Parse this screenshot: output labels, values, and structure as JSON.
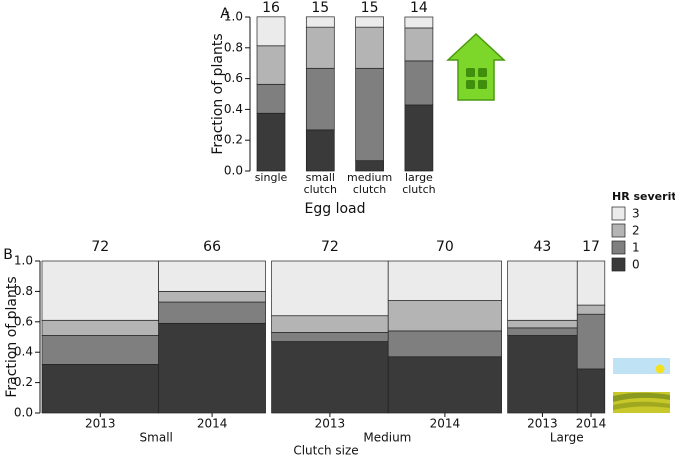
{
  "chart_data": [
    {
      "type": "stacked_bar",
      "panel_label": "A",
      "xlabel": "Egg load",
      "ylabel": "Fraction of plants",
      "categories": [
        "single",
        "small clutch",
        "medium clutch",
        "large clutch"
      ],
      "counts": [
        16,
        15,
        15,
        14
      ],
      "series": [
        {
          "color": "#3a3a3a",
          "values": [
            0.375,
            0.267,
            0.067,
            0.429
          ]
        },
        {
          "color": "#7f7f7f",
          "values": [
            0.188,
            0.4,
            0.6,
            0.286
          ]
        },
        {
          "color": "#b4b4b4",
          "values": [
            0.25,
            0.267,
            0.267,
            0.214
          ]
        },
        {
          "color": "#ebebeb",
          "values": [
            0.188,
            0.067,
            0.067,
            0.071
          ]
        }
      ],
      "ylim": [
        0,
        1
      ],
      "yticks": [
        {
          "value": 0,
          "label": "0.0"
        },
        0.2,
        0.4,
        0.6,
        0.8,
        {
          "value": 1,
          "label": "1.0"
        }
      ]
    },
    {
      "type": "mosaic",
      "panel_label": "B",
      "xlabel": "Clutch size",
      "ylabel": "Fraction of plants",
      "categories": [
        "2013",
        "2014",
        "2013",
        "2014",
        "2013",
        "2014"
      ],
      "group_names": [
        "Small",
        "Medium",
        "Large"
      ],
      "counts": [
        72,
        66,
        72,
        70,
        43,
        17
      ],
      "legend_title": "HR severity",
      "series": [
        {
          "name": "0",
          "color": "#3a3a3a",
          "values": [
            0.32,
            0.59,
            0.47,
            0.37,
            0.51,
            0.29
          ]
        },
        {
          "name": "1",
          "color": "#7f7f7f",
          "values": [
            0.19,
            0.14,
            0.06,
            0.17,
            0.05,
            0.36
          ]
        },
        {
          "name": "2",
          "color": "#b4b4b4",
          "values": [
            0.1,
            0.07,
            0.11,
            0.2,
            0.05,
            0.06
          ]
        },
        {
          "name": "3",
          "color": "#ebebeb",
          "values": [
            0.39,
            0.2,
            0.36,
            0.26,
            0.39,
            0.29
          ]
        }
      ],
      "ylim": [
        0,
        1
      ],
      "yticks": [
        {
          "value": 0,
          "label": "0.0"
        },
        0.2,
        0.4,
        0.6,
        0.8,
        {
          "value": 1,
          "label": "1.0"
        }
      ]
    }
  ]
}
